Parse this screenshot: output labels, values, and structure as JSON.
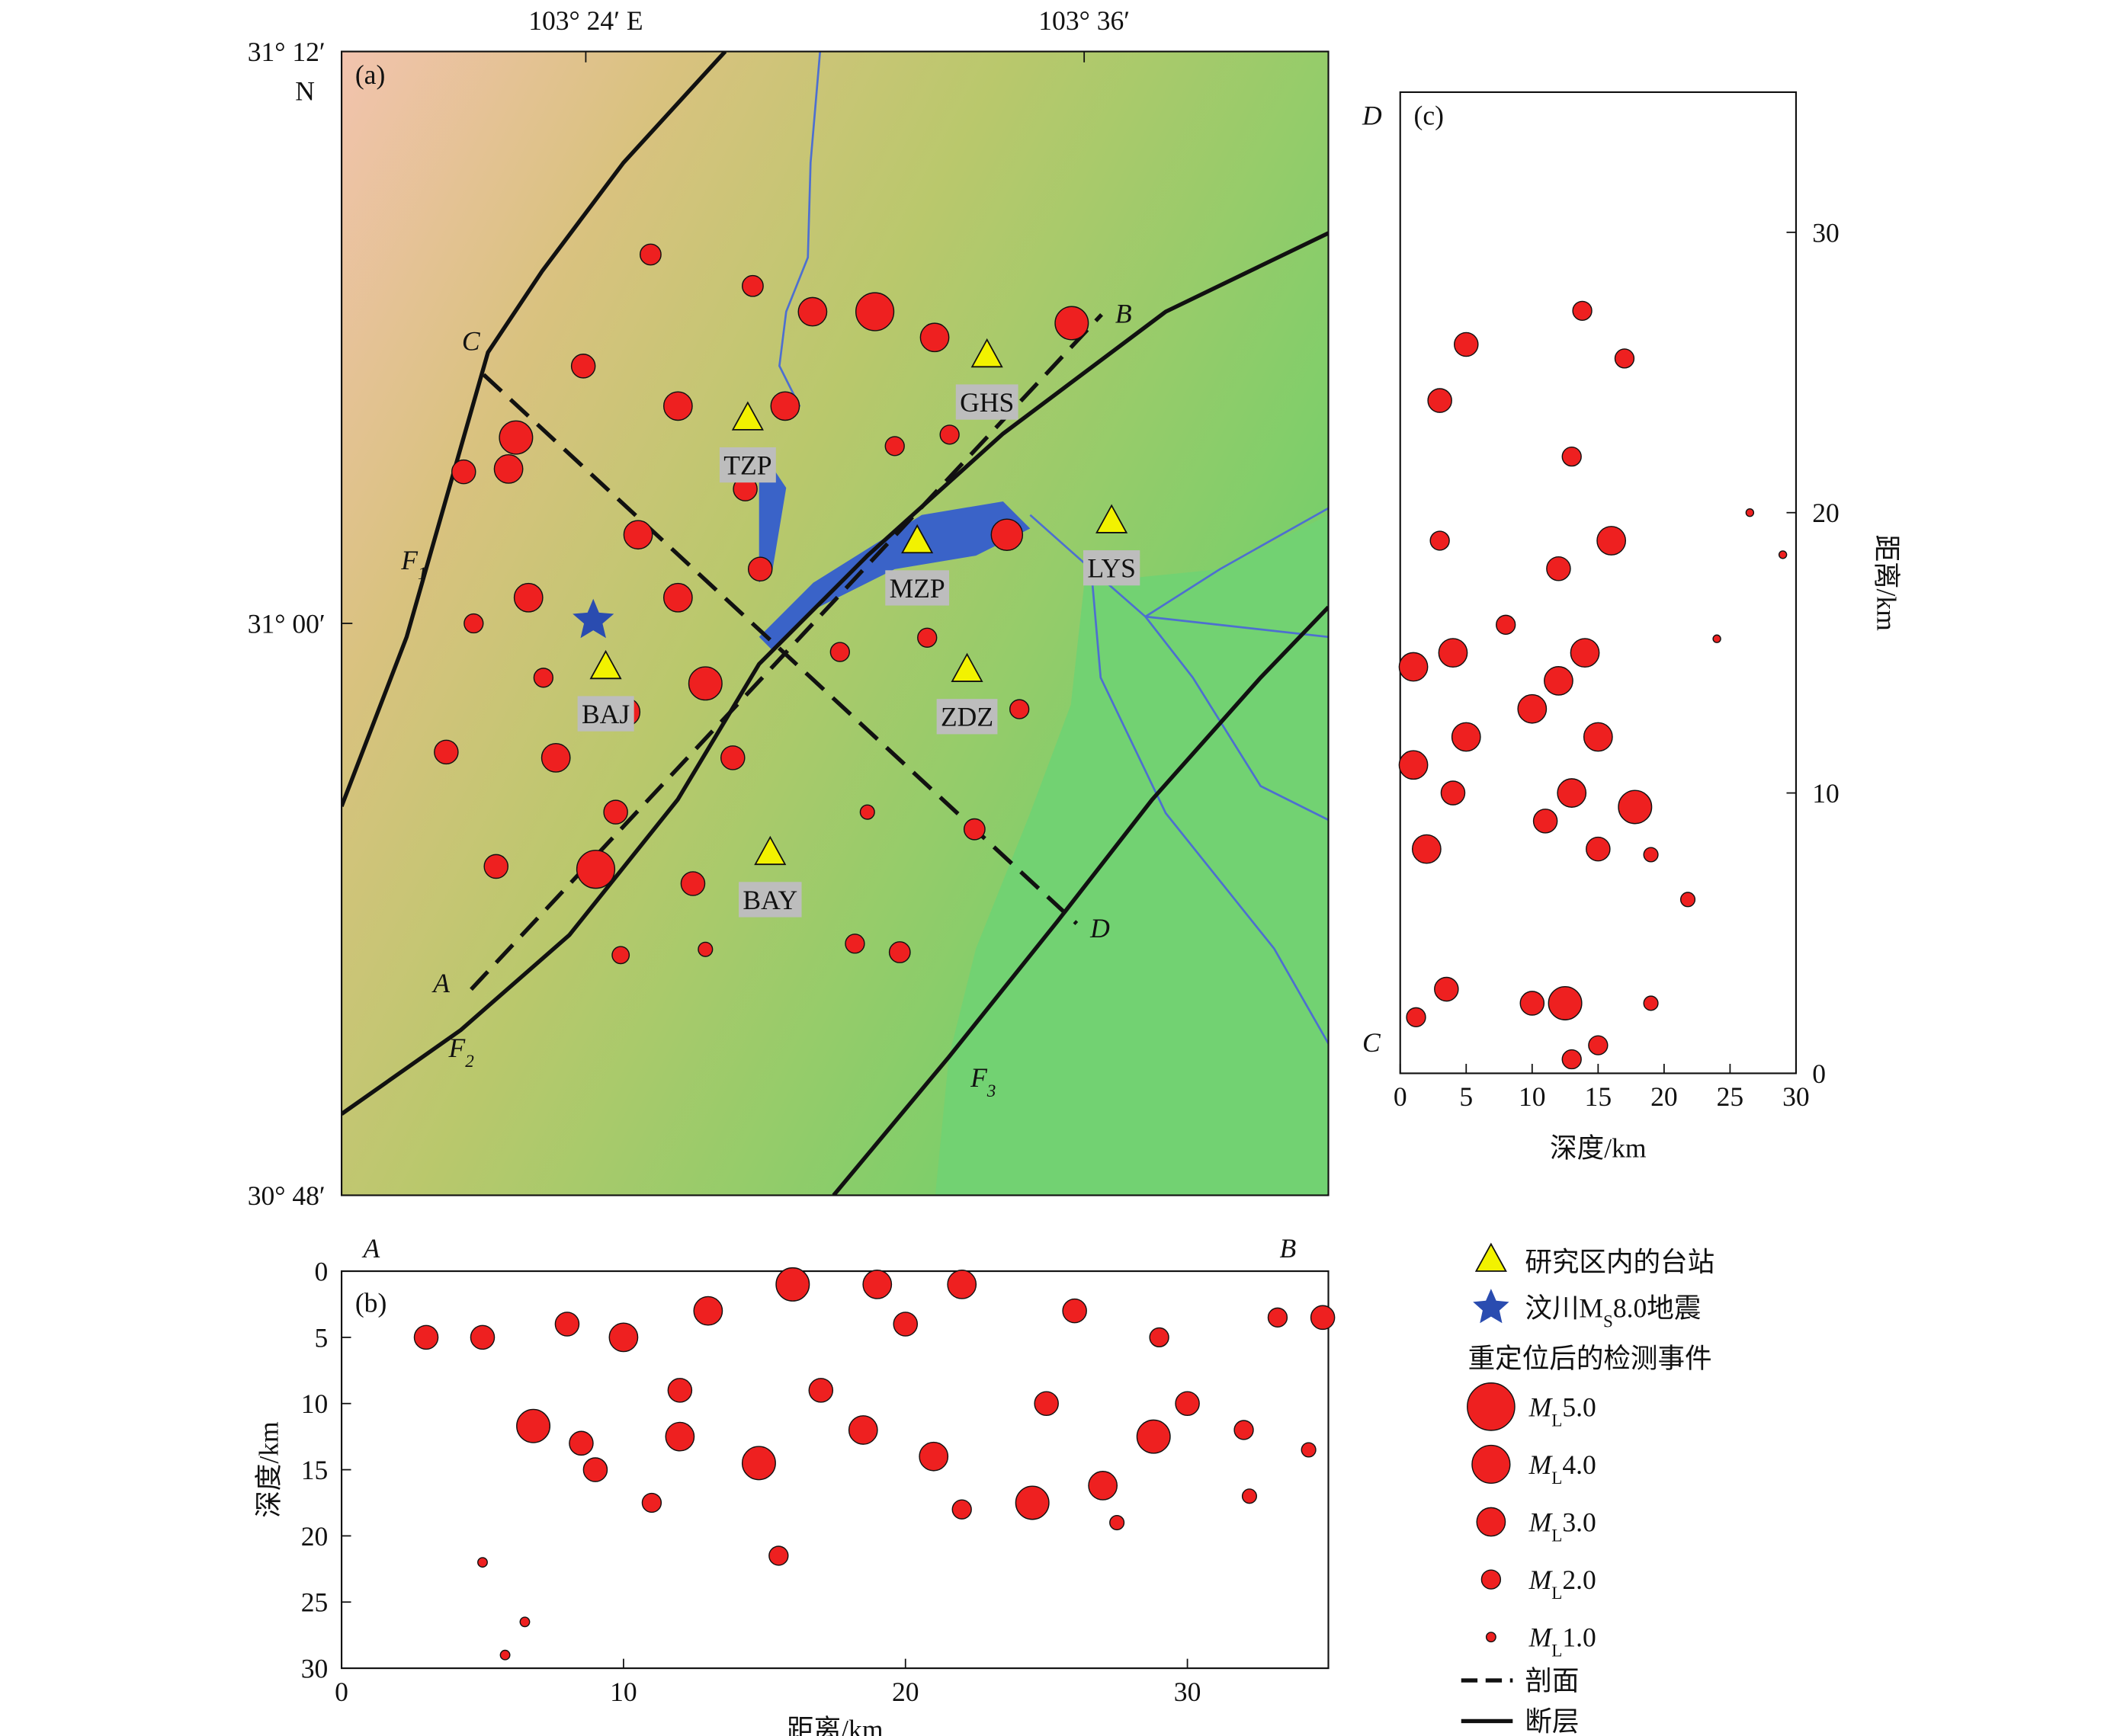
{
  "chart_data": [
    {
      "type": "map",
      "panel_label": "(a)",
      "xlim": [
        103.302,
        103.698
      ],
      "ylim": [
        30.8,
        31.2
      ],
      "xticks": [
        {
          "value": 103.4,
          "label": "103° 24′ E"
        },
        {
          "value": 103.6,
          "label": "103° 36′"
        }
      ],
      "yticks": [
        {
          "value": 31.2,
          "label": "31° 12′"
        },
        {
          "value": 31.0,
          "label": "31° 00′"
        },
        {
          "value": 30.8,
          "label": "30° 48′"
        }
      ],
      "lat_hemisphere": "N",
      "stations": {
        "names": [
          "TZP",
          "GHS",
          "MZP",
          "LYS",
          "BAJ",
          "ZDZ",
          "BAY"
        ],
        "lon": [
          103.465,
          103.561,
          103.533,
          103.611,
          103.408,
          103.553,
          103.474
        ],
        "lat": [
          31.072,
          31.094,
          31.029,
          31.036,
          30.985,
          30.984,
          30.92
        ],
        "color": "#f2f200"
      },
      "epicenter": {
        "lon": 103.403,
        "lat": 31.001,
        "color": "#2a4cb0"
      },
      "profiles": [
        {
          "labels": [
            "A",
            "B"
          ],
          "lon": [
            103.354,
            103.607
          ],
          "lat": [
            30.872,
            31.108
          ]
        },
        {
          "labels": [
            "C",
            "D"
          ],
          "lon": [
            103.359,
            103.597
          ],
          "lat": [
            31.087,
            30.895
          ]
        }
      ],
      "fault_labels": [
        {
          "text": "F",
          "sub": "1"
        },
        {
          "text": "F",
          "sub": "2"
        },
        {
          "text": "F",
          "sub": "3"
        }
      ],
      "events": {
        "color": "#ee2020",
        "lon": [
          103.372,
          103.404,
          103.516,
          103.595,
          103.569,
          103.448,
          103.416,
          103.369,
          103.421,
          103.48,
          103.54,
          103.344,
          103.351,
          103.443,
          103.526,
          103.508,
          103.574,
          103.556,
          103.537,
          103.426,
          103.467,
          103.388,
          103.377,
          103.437,
          103.47,
          103.491,
          103.399,
          103.502,
          103.513,
          103.414,
          103.448,
          103.364,
          103.412,
          103.459,
          103.383,
          103.464,
          103.437,
          103.524,
          103.546,
          103.355
        ],
        "lat": [
          31.065,
          30.914,
          31.109,
          31.105,
          31.031,
          30.979,
          30.969,
          31.054,
          31.031,
          31.076,
          31.1,
          30.955,
          31.053,
          30.909,
          30.885,
          30.888,
          30.97,
          30.928,
          30.995,
          31.129,
          31.118,
          30.953,
          31.009,
          31.009,
          31.019,
          31.109,
          31.09,
          30.99,
          30.934,
          30.884,
          30.886,
          30.915,
          30.934,
          30.953,
          30.981,
          31.047,
          31.076,
          31.062,
          31.066,
          31.0
        ],
        "magnitude": [
          3.5,
          4.0,
          4.0,
          3.5,
          3.3,
          3.5,
          3.0,
          3.0,
          3.0,
          3.0,
          3.0,
          2.5,
          2.5,
          2.5,
          2.2,
          2.0,
          2.0,
          2.2,
          2.0,
          2.2,
          2.2,
          3.0,
          3.0,
          3.0,
          2.5,
          3.0,
          2.5,
          2.0,
          1.5,
          1.8,
          1.5,
          2.5,
          2.5,
          2.5,
          2.0,
          2.5,
          3.0,
          2.0,
          2.0,
          2.0
        ]
      }
    },
    {
      "type": "scatter",
      "panel_label": "(b)",
      "x_label": "距离/km",
      "y_label": "深度/km",
      "end_labels": [
        "A",
        "B"
      ],
      "xlim": [
        0,
        35
      ],
      "ylim": [
        30,
        0
      ],
      "xticks": [
        0,
        10,
        20,
        30
      ],
      "yticks": [
        0,
        5,
        10,
        15,
        20,
        25,
        30
      ],
      "color": "#ee2020",
      "x": [
        6.8,
        24.5,
        28.8,
        27.0,
        15.5,
        3.0,
        5.0,
        34.8,
        33.2,
        16,
        19,
        22,
        13,
        10,
        12,
        14.8,
        18.5,
        21,
        30,
        32,
        9,
        11,
        22,
        27.5,
        32.2,
        5,
        6.5,
        5.8,
        8.5,
        25,
        17,
        12,
        20,
        8,
        26,
        29,
        34.3
      ],
      "y": [
        11.7,
        17.5,
        12.5,
        16.2,
        21.5,
        5.0,
        5.0,
        3.5,
        3.5,
        1,
        1,
        1,
        3,
        5,
        12.5,
        14.5,
        12,
        14,
        10,
        12,
        15,
        17.5,
        18,
        19,
        17,
        22,
        26.5,
        29.0,
        13,
        10,
        9,
        9,
        4,
        4,
        3,
        5,
        13.5
      ],
      "magnitude": [
        3.5,
        3.5,
        3.5,
        3.0,
        2.0,
        2.5,
        2.5,
        2.5,
        2.0,
        3.5,
        3.0,
        3.0,
        3.0,
        3.0,
        3.0,
        3.5,
        3.0,
        3.0,
        2.5,
        2.0,
        2.5,
        2.0,
        2.0,
        1.5,
        1.5,
        1.0,
        1.0,
        1.0,
        2.5,
        2.5,
        2.5,
        2.5,
        2.5,
        2.5,
        2.5,
        2.0,
        1.5
      ]
    },
    {
      "type": "scatter",
      "panel_label": "(c)",
      "x_label": "深度/km",
      "y_label": "距离/km",
      "end_labels": [
        "C",
        "D"
      ],
      "xlim": [
        0,
        30
      ],
      "ylim": [
        0,
        35
      ],
      "xticks": [
        0,
        5,
        10,
        15,
        20,
        25,
        30
      ],
      "yticks": [
        0,
        10,
        20,
        30
      ],
      "color": "#ee2020",
      "x": [
        17.8,
        16.0,
        12.5,
        5.0,
        3.0,
        13.8,
        17.0,
        1.0,
        4,
        12,
        14,
        2,
        4,
        11,
        13,
        15,
        19,
        21.8,
        19,
        1.2,
        3.5,
        10,
        13,
        15,
        3,
        13,
        26.5,
        29,
        24,
        1,
        5,
        10,
        15,
        8,
        12
      ],
      "y": [
        9.5,
        19.0,
        2.5,
        26.0,
        24.0,
        27.2,
        25.5,
        14.5,
        15,
        14,
        15,
        8,
        10,
        9,
        10,
        8,
        7.8,
        6.2,
        2.5,
        2.0,
        3.0,
        2.5,
        0.5,
        1,
        19,
        22,
        20,
        18.5,
        15.5,
        11,
        12,
        13,
        12,
        16,
        18
      ],
      "magnitude": [
        3.5,
        3.0,
        3.5,
        2.5,
        2.5,
        2.0,
        2.0,
        3.0,
        3.0,
        3.0,
        3.0,
        3.0,
        2.5,
        2.5,
        3.0,
        2.5,
        1.5,
        1.5,
        1.5,
        2.0,
        2.5,
        2.5,
        2.0,
        2.0,
        2.0,
        2.0,
        0.8,
        0.8,
        0.8,
        3.0,
        3.0,
        3.0,
        3.0,
        2.0,
        2.5
      ]
    }
  ],
  "legend": {
    "station": "研究区内的台站",
    "epicenter": {
      "pre": "汶川M",
      "sub": "S",
      "post": "8.0地震"
    },
    "events": "重定位后的检测事件",
    "mag_prefix": "M",
    "mag_sub": "L",
    "magnitudes": [
      {
        "value": 5,
        "label": "5.0"
      },
      {
        "value": 4,
        "label": "4.0"
      },
      {
        "value": 3,
        "label": "3.0"
      },
      {
        "value": 2,
        "label": "2.0"
      },
      {
        "value": 1,
        "label": "1.0"
      }
    ],
    "profile": "剖面",
    "fault": "断层"
  }
}
